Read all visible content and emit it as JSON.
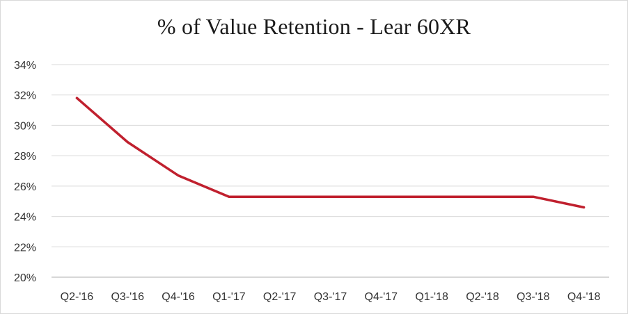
{
  "chart_data": {
    "type": "line",
    "title": "% of Value Retention - Lear 60XR",
    "xlabel": "",
    "ylabel": "",
    "categories": [
      "Q2-'16",
      "Q3-'16",
      "Q4-'16",
      "Q1-'17",
      "Q2-'17",
      "Q3-'17",
      "Q4-'17",
      "Q1-'18",
      "Q2-'18",
      "Q3-'18",
      "Q4-'18"
    ],
    "series": [
      {
        "values": [
          31.8,
          28.9,
          26.7,
          25.3,
          25.3,
          25.3,
          25.3,
          25.3,
          25.3,
          25.3,
          24.6
        ]
      }
    ],
    "ylim": [
      20,
      34
    ],
    "yticks": [
      20,
      22,
      24,
      26,
      28,
      30,
      32,
      34
    ],
    "ytick_labels": [
      "20%",
      "22%",
      "24%",
      "26%",
      "28%",
      "30%",
      "32%",
      "34%"
    ],
    "grid": "horizontal",
    "legend": "none",
    "colors": {
      "line": "#c0202e",
      "grid": "#d9d9d9",
      "axis": "#bfbfbf"
    }
  }
}
